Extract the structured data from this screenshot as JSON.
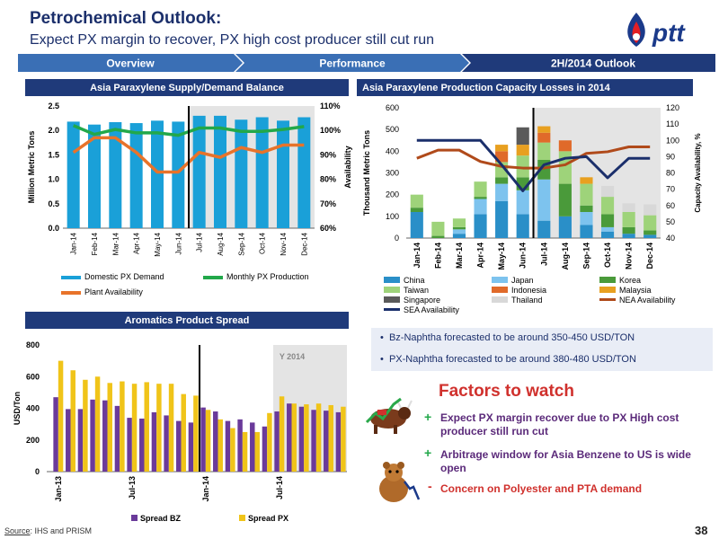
{
  "header": {
    "title": "Petrochemical Outlook:",
    "subtitle": "Expect PX margin to recover, PX high cost producer still cut run",
    "logo_text": "ptt"
  },
  "nav": {
    "tabs": [
      {
        "label": "Overview",
        "active": false
      },
      {
        "label": "Performance",
        "active": false
      },
      {
        "label": "2H/2014 Outlook",
        "active": true
      }
    ]
  },
  "panels": {
    "supply_title": "Asia Paraxylene Supply/Demand Balance",
    "capacity_title": "Asia Paraxylene Production Capacity Losses in 2014",
    "spread_title": "Aromatics Product Spread"
  },
  "bullets": [
    "Bz-Naphtha forecasted to be around 350-450 USD/TON",
    "PX-Naphtha forecasted to be around 380-480 USD/TON"
  ],
  "factors": {
    "title": "Factors to watch",
    "items": [
      {
        "sign": "+",
        "text": "Expect  PX margin recover due to PX High cost producer still run cut"
      },
      {
        "sign": "+",
        "text": "Arbitrage window for Asia Benzene to US is wide open"
      },
      {
        "sign": "-",
        "text": "Concern on Polyester and PTA  demand"
      }
    ]
  },
  "footer": {
    "source_label": "Source",
    "source_text": ": IHS and PRISM",
    "page_number": "38"
  },
  "colors": {
    "navy": "#1f3a7a",
    "nav_tab": "#3a6fb5",
    "nav_active": "#1f3a7a",
    "demand": "#1aa0d8",
    "production": "#22a84a",
    "plant": "#e8732a",
    "spread_bz": "#6a3a9a",
    "spread_px": "#f0c419",
    "factors_red": "#d0312d"
  },
  "chart_data": [
    {
      "type": "bar",
      "title": "Asia Paraxylene Supply/Demand Balance",
      "categories": [
        "Jan-14",
        "Feb-14",
        "Mar-14",
        "Apr-14",
        "May-14",
        "Jun-14",
        "Jul-14",
        "Aug-14",
        "Sep-14",
        "Oct-14",
        "Nov-14",
        "Dec-14"
      ],
      "ylabel": "Million Metric Tons",
      "ylabel_right": "Availability",
      "ylim": [
        0,
        2.5
      ],
      "yticks": [
        "0.0",
        "0.5",
        "1.0",
        "1.5",
        "2.0",
        "2.5"
      ],
      "ylim_right": [
        60,
        110
      ],
      "yticks_right": [
        "60%",
        "70%",
        "80%",
        "90%",
        "100%",
        "110%"
      ],
      "series": [
        {
          "name": "Domestic  PX Demand",
          "kind": "bar",
          "axis": "left",
          "values": [
            2.18,
            2.12,
            2.17,
            2.15,
            2.2,
            2.18,
            2.3,
            2.3,
            2.22,
            2.27,
            2.2,
            2.27
          ]
        },
        {
          "name": "Monthly PX Production",
          "kind": "line",
          "axis": "left",
          "values": [
            2.1,
            1.92,
            2.02,
            1.95,
            1.95,
            1.9,
            2.05,
            2.05,
            1.98,
            1.98,
            2.02,
            2.08
          ]
        },
        {
          "name": "Plant Availability",
          "kind": "line",
          "axis": "right",
          "values": [
            91,
            97,
            97,
            91,
            83,
            83,
            91,
            89,
            93,
            91,
            94,
            94
          ]
        }
      ],
      "legend": "bottom",
      "shaded_from_index": 6
    },
    {
      "type": "bar",
      "title": "Asia Paraxylene Production Capacity Losses in 2014",
      "categories": [
        "Jan-14",
        "Feb-14",
        "Mar-14",
        "Apr-14",
        "May-14",
        "Jun-14",
        "Jul-14",
        "Aug-14",
        "Sep-14",
        "Oct-14",
        "Nov-14",
        "Dec-14"
      ],
      "ylabel": "Thousand Metric Tons",
      "ylabel_right": "Capacity Availability, %",
      "ylim": [
        0,
        600
      ],
      "yticks": [
        "0",
        "100",
        "200",
        "300",
        "400",
        "500",
        "600"
      ],
      "ylim_right": [
        40,
        120
      ],
      "yticks_right": [
        "40",
        "50",
        "60",
        "70",
        "80",
        "90",
        "100",
        "110",
        "120"
      ],
      "stacked": true,
      "series": [
        {
          "name": "China",
          "values": [
            120,
            0,
            20,
            110,
            170,
            110,
            80,
            100,
            60,
            30,
            20,
            15
          ]
        },
        {
          "name": "Japan",
          "values": [
            0,
            0,
            20,
            70,
            80,
            110,
            190,
            0,
            60,
            20,
            0,
            0
          ]
        },
        {
          "name": "Korea",
          "values": [
            20,
            10,
            10,
            10,
            30,
            60,
            90,
            150,
            30,
            60,
            30,
            20
          ]
        },
        {
          "name": "Taiwan",
          "values": [
            60,
            65,
            40,
            70,
            70,
            100,
            80,
            150,
            100,
            80,
            70,
            70
          ]
        },
        {
          "name": "Indonesia",
          "values": [
            0,
            0,
            0,
            0,
            50,
            0,
            45,
            50,
            0,
            0,
            0,
            0
          ]
        },
        {
          "name": "Malaysia",
          "values": [
            0,
            0,
            0,
            0,
            30,
            50,
            30,
            0,
            30,
            0,
            0,
            0
          ]
        },
        {
          "name": "Singapore",
          "values": [
            0,
            0,
            0,
            0,
            0,
            80,
            0,
            0,
            0,
            0,
            0,
            0
          ]
        },
        {
          "name": "Thailand",
          "values": [
            0,
            0,
            0,
            0,
            0,
            0,
            0,
            0,
            0,
            50,
            40,
            50
          ]
        },
        {
          "name": "NEA Availability",
          "kind": "line",
          "axis": "right",
          "values": [
            89,
            94,
            94,
            87,
            84,
            83,
            83,
            85,
            92,
            93,
            96,
            96
          ]
        },
        {
          "name": "SEA Availability",
          "kind": "line",
          "axis": "right",
          "values": [
            100,
            100,
            100,
            100,
            85,
            69,
            85,
            89,
            90,
            77,
            89,
            89
          ]
        }
      ],
      "legend": "bottom",
      "shaded_from_index": 6
    },
    {
      "type": "bar",
      "title": "Aromatics Product Spread",
      "x_tick_labels": [
        "Jan-13",
        "Jul-13",
        "Jan-14",
        "Jul-14"
      ],
      "annotation": "Y 2014",
      "ylabel": "USD/Ton",
      "ylim": [
        0,
        800
      ],
      "yticks": [
        "0",
        "200",
        "400",
        "600",
        "800"
      ],
      "series": [
        {
          "name": "Spread BZ",
          "values": [
            470,
            395,
            395,
            455,
            450,
            415,
            340,
            335,
            375,
            355,
            320,
            310,
            405,
            380,
            320,
            330,
            310,
            285,
            380,
            430,
            410,
            390,
            385,
            375
          ]
        },
        {
          "name": "Spread PX",
          "values": [
            700,
            640,
            580,
            600,
            560,
            570,
            555,
            565,
            555,
            555,
            490,
            480,
            390,
            330,
            275,
            250,
            250,
            370,
            475,
            430,
            425,
            430,
            420,
            410
          ]
        }
      ],
      "legend": "bottom",
      "shaded_from_index": 18
    }
  ]
}
